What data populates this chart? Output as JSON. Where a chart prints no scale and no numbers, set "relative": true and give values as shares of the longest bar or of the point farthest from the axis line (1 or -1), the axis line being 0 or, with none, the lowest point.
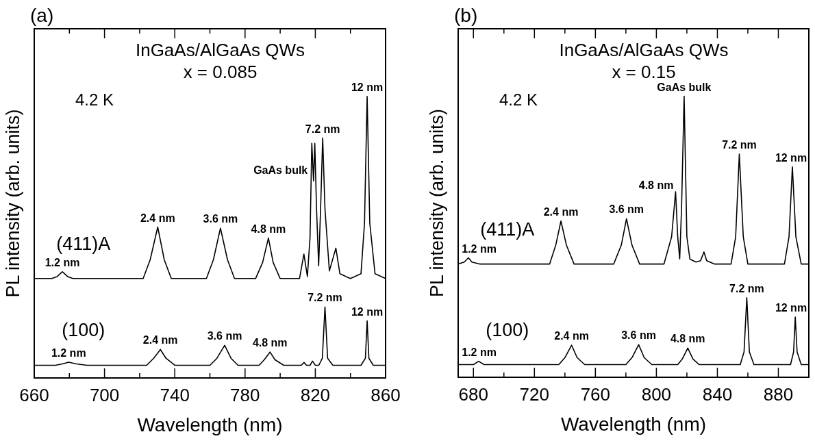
{
  "chart_data": [
    {
      "type": "line",
      "title": "(a)",
      "xlabel": "Wavelength (nm)",
      "ylabel": "PL intensity (arb. units)",
      "relative": true,
      "xlim": [
        660,
        860
      ],
      "xticks": [
        660,
        {
          "value": 680,
          "label": null
        },
        700,
        {
          "value": 720,
          "label": null
        },
        740,
        {
          "value": 760,
          "label": null
        },
        780,
        {
          "value": 800,
          "label": null
        },
        820,
        {
          "value": 840,
          "label": null
        },
        860
      ],
      "series": [
        {
          "name": "(411)A",
          "color": "#000000",
          "x": [
            660,
            670,
            673,
            676,
            679,
            682,
            722,
            726,
            730.3,
            734,
            738,
            758,
            762,
            766,
            770,
            774,
            786,
            790,
            793.3,
            796,
            800,
            811,
            813.5,
            815.5,
            817,
            818,
            819,
            819.7,
            820.7,
            821.9,
            823,
            824.2,
            825.5,
            828,
            831.7,
            834,
            840,
            846,
            848,
            849.5,
            851,
            854,
            860
          ],
          "values": [
            0.353,
            0.353,
            0.36,
            0.377,
            0.36,
            0.353,
            0.353,
            0.42,
            0.536,
            0.42,
            0.353,
            0.353,
            0.42,
            0.532,
            0.42,
            0.353,
            0.353,
            0.41,
            0.497,
            0.41,
            0.353,
            0.353,
            0.44,
            0.36,
            0.5,
            0.833,
            0.7,
            0.833,
            0.6,
            0.398,
            0.6,
            0.852,
            0.6,
            0.38,
            0.461,
            0.37,
            0.353,
            0.37,
            0.55,
            1,
            0.55,
            0.37,
            0.353
          ]
        },
        {
          "name": "(100)",
          "color": "#000000",
          "x": [
            660,
            672,
            676,
            679.6,
            684,
            690,
            724,
            728,
            731.8,
            735,
            740,
            760,
            764,
            768.4,
            772,
            776,
            788,
            791,
            794.2,
            797,
            802,
            812,
            813.6,
            815,
            817,
            818.4,
            820,
            822,
            824,
            825.5,
            827,
            830,
            846,
            848.5,
            849.5,
            850.5,
            853,
            860
          ],
          "values": [
            0.045,
            0.045,
            0.05,
            0.056,
            0.05,
            0.045,
            0.045,
            0.07,
            0.101,
            0.07,
            0.045,
            0.045,
            0.07,
            0.116,
            0.07,
            0.045,
            0.045,
            0.065,
            0.092,
            0.065,
            0.045,
            0.045,
            0.055,
            0.045,
            0.045,
            0.06,
            0.045,
            0.045,
            0.07,
            0.252,
            0.07,
            0.045,
            0.045,
            0.07,
            0.203,
            0.07,
            0.045,
            0.045
          ]
        }
      ],
      "annotations": [
        "InGaAs/AlGaAs QWs",
        "x = 0.085",
        "4.2 K",
        {
          "text": "1.2 nm",
          "x": 676,
          "y": 0.377
        },
        {
          "text": "2.4 nm",
          "x": 730.3,
          "y": 0.536
        },
        {
          "text": "3.6 nm",
          "x": 766,
          "y": 0.532
        },
        {
          "text": "4.8 nm",
          "x": 793.3,
          "y": 0.497
        },
        {
          "text": "7.2 nm",
          "x": 824.2,
          "y": 0.852
        },
        {
          "text": "12 nm",
          "x": 849.5,
          "y": 1
        },
        {
          "text": "GaAs bulk",
          "x": 818,
          "y": 0.833
        },
        {
          "text": "1.2 nm",
          "x": 679.6,
          "y": 0.056
        },
        {
          "text": "2.4 nm",
          "x": 731.8,
          "y": 0.101
        },
        {
          "text": "3.6 nm",
          "x": 768.4,
          "y": 0.116
        },
        {
          "text": "4.8 nm",
          "x": 794.2,
          "y": 0.092
        },
        {
          "text": "7.2 nm",
          "x": 825.5,
          "y": 0.252
        },
        {
          "text": "12 nm",
          "x": 849.5,
          "y": 0.203
        }
      ]
    },
    {
      "type": "line",
      "title": "(b)",
      "xlabel": "Wavelength (nm)",
      "ylabel": "PL intensity (arb. units)",
      "relative": true,
      "xlim": [
        670,
        900
      ],
      "xticks": [
        680,
        {
          "value": 700,
          "label": null
        },
        720,
        {
          "value": 740,
          "label": null
        },
        760,
        {
          "value": 780,
          "label": null
        },
        800,
        {
          "value": 820,
          "label": null
        },
        840,
        {
          "value": 860,
          "label": null
        },
        880
      ],
      "series": [
        {
          "name": "(411)A",
          "color": "#000000",
          "x": [
            670,
            674,
            676.7,
            679,
            684,
            730,
            734,
            737.4,
            741,
            746,
            772,
            777,
            780.4,
            784,
            789,
            805,
            810,
            812.6,
            814,
            815.3,
            816.5,
            818.2,
            820,
            822,
            826,
            829,
            831.2,
            833,
            838,
            849,
            852,
            854.4,
            857,
            860,
            884,
            887,
            889.2,
            891.5,
            895,
            900
          ],
          "values": [
            0.403,
            0.41,
            0.425,
            0.41,
            0.403,
            0.403,
            0.47,
            0.556,
            0.47,
            0.403,
            0.403,
            0.47,
            0.564,
            0.47,
            0.403,
            0.403,
            0.5,
            0.66,
            0.5,
            0.421,
            0.6,
            1,
            0.5,
            0.42,
            0.41,
            0.415,
            0.446,
            0.415,
            0.403,
            0.403,
            0.5,
            0.794,
            0.5,
            0.403,
            0.403,
            0.5,
            0.749,
            0.5,
            0.403,
            0.403
          ]
        },
        {
          "name": "(100)",
          "color": "#000000",
          "x": [
            670,
            680,
            683.4,
            687,
            736,
            740,
            744.4,
            748,
            753,
            780,
            784,
            788.4,
            792,
            797,
            814,
            817,
            820.6,
            824,
            828,
            855,
            857.5,
            859.3,
            861,
            864,
            888,
            890,
            891.1,
            892.3,
            895,
            900
          ],
          "values": [
            0.045,
            0.045,
            0.057,
            0.045,
            0.045,
            0.07,
            0.114,
            0.07,
            0.045,
            0.045,
            0.07,
            0.116,
            0.07,
            0.045,
            0.045,
            0.065,
            0.104,
            0.065,
            0.045,
            0.045,
            0.09,
            0.283,
            0.09,
            0.045,
            0.045,
            0.09,
            0.214,
            0.09,
            0.045,
            0.045
          ]
        }
      ],
      "annotations": [
        "InGaAs/AlGaAs QWs",
        "x = 0.15",
        "4.2 K",
        {
          "text": "1.2 nm",
          "x": 676.7,
          "y": 0.425
        },
        {
          "text": "2.4 nm",
          "x": 737.4,
          "y": 0.556
        },
        {
          "text": "3.6 nm",
          "x": 780.4,
          "y": 0.564
        },
        {
          "text": "4.8 nm",
          "x": 812.6,
          "y": 0.66
        },
        {
          "text": "7.2 nm",
          "x": 854.4,
          "y": 0.794
        },
        {
          "text": "12 nm",
          "x": 889.2,
          "y": 0.749
        },
        {
          "text": "GaAs bulk",
          "x": 818.2,
          "y": 1
        },
        {
          "text": "1.2 nm",
          "x": 683.4,
          "y": 0.057
        },
        {
          "text": "2.4 nm",
          "x": 744.4,
          "y": 0.114
        },
        {
          "text": "3.6 nm",
          "x": 788.4,
          "y": 0.116
        },
        {
          "text": "4.8 nm",
          "x": 820.6,
          "y": 0.104
        },
        {
          "text": "7.2 nm",
          "x": 859.3,
          "y": 0.283
        },
        {
          "text": "12 nm",
          "x": 891.1,
          "y": 0.214
        }
      ]
    }
  ]
}
